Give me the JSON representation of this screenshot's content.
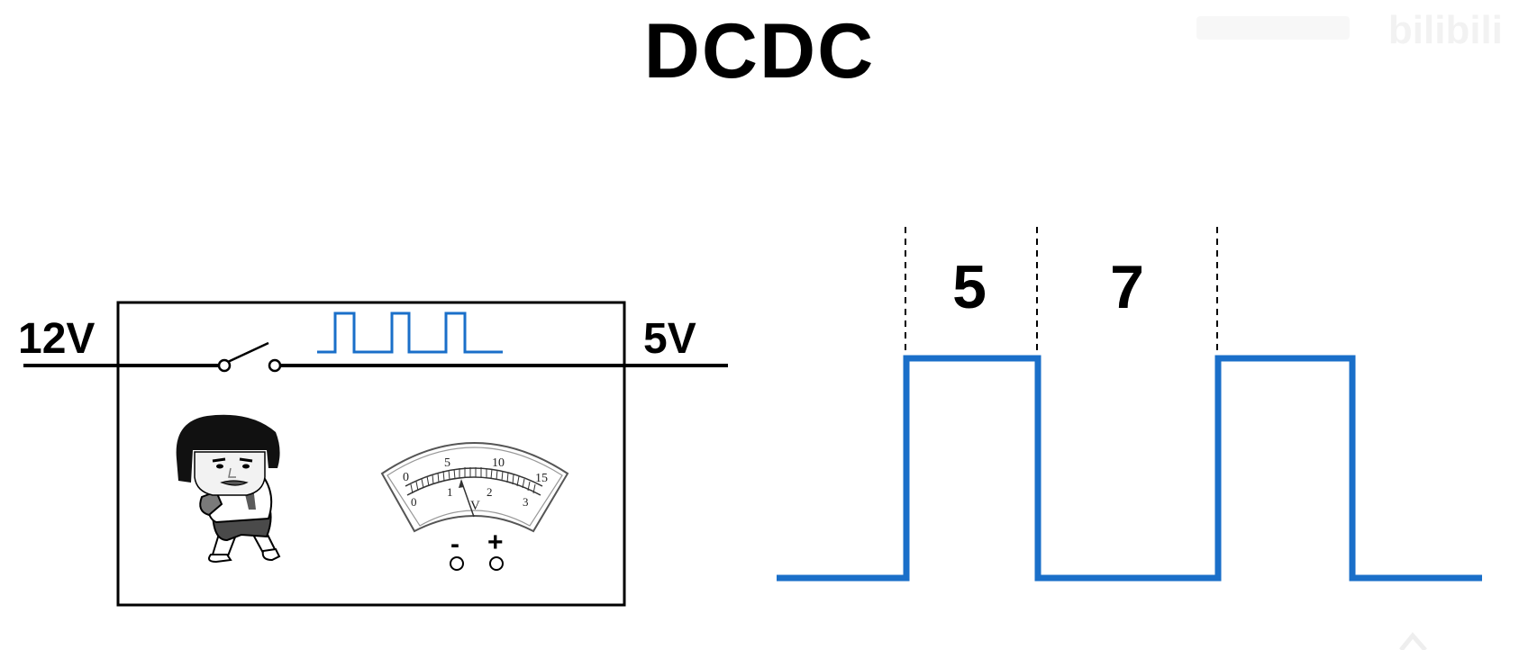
{
  "title": "DCDC",
  "circuit": {
    "input_voltage": "12V",
    "output_voltage": "5V"
  },
  "voltmeter": {
    "upper_scale": [
      "0",
      "5",
      "10",
      "15"
    ],
    "lower_scale": [
      "0",
      "1",
      "2",
      "3"
    ],
    "unit": "V",
    "terminal_minus": "-",
    "terminal_plus": "+"
  },
  "waveform": {
    "interval_1_label": "5",
    "interval_2_label": "7"
  },
  "watermark": {
    "brand": "bilibili"
  },
  "colors": {
    "pulse_blue": "#1a6fc9",
    "line": "#000000"
  }
}
